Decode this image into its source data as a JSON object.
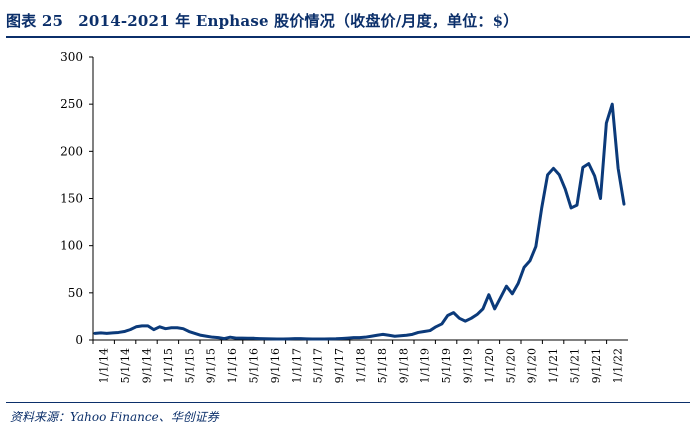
{
  "header": {
    "title": "图表 25　2014-2021 年 Enphase 股价情况（收盘价/月度，单位：$）"
  },
  "footer": {
    "source": "资料来源：Yahoo Finance、华创证券"
  },
  "colors": {
    "line": "#0b3a7a",
    "title": "#0b2f6a",
    "axis": "#000000"
  },
  "chart_data": {
    "type": "line",
    "title": "",
    "xlabel": "",
    "ylabel": "",
    "ylim": [
      0,
      300
    ],
    "yticks": [
      0,
      50,
      100,
      150,
      200,
      250,
      300
    ],
    "grid": false,
    "legend": "none",
    "x_tick_labels": [
      "1/1/14",
      "5/1/14",
      "9/1/14",
      "1/1/15",
      "5/1/15",
      "9/1/15",
      "1/1/16",
      "5/1/16",
      "9/1/16",
      "1/1/17",
      "5/1/17",
      "9/1/17",
      "1/1/18",
      "5/1/18",
      "9/1/18",
      "1/1/19",
      "5/1/19",
      "9/1/19",
      "1/1/20",
      "5/1/20",
      "9/1/20",
      "1/1/21",
      "5/1/21",
      "9/1/21",
      "1/1/22"
    ],
    "series": [
      {
        "values": [
          7,
          7.5,
          7,
          7.5,
          8,
          9,
          11,
          14,
          15,
          15,
          11,
          14,
          12,
          13,
          13,
          12,
          9,
          7,
          5,
          4,
          3,
          2.5,
          1.5,
          3,
          2,
          2,
          1.8,
          1.8,
          1.5,
          1.3,
          1.2,
          1.0,
          1.0,
          1.2,
          1.4,
          1.4,
          1.2,
          1.0,
          1.0,
          1.0,
          1.2,
          1.3,
          1.6,
          2,
          2.5,
          2.5,
          3,
          4,
          5,
          6,
          5,
          4,
          4.5,
          5,
          6,
          8,
          9,
          10,
          14,
          17,
          26,
          29,
          23,
          20,
          23,
          27,
          33,
          48,
          33,
          45,
          57,
          49,
          60,
          77,
          84,
          99,
          140,
          175,
          182,
          175,
          160,
          140,
          143,
          183,
          187,
          174,
          150,
          230,
          250,
          182,
          144
        ]
      }
    ]
  }
}
